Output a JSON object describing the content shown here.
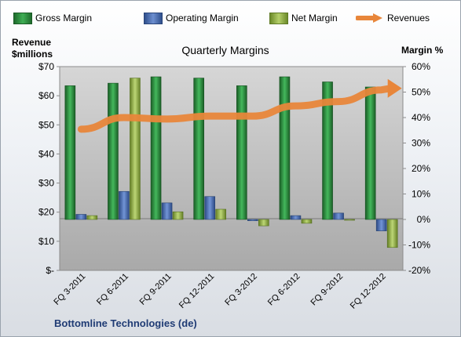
{
  "chart_data": {
    "type": "bar",
    "title": "Quarterly Margins",
    "subtitle": "Bottomline Technologies (de)",
    "left_axis_title": [
      "Revenue",
      "$millions"
    ],
    "right_axis_title": "Margin %",
    "left_ticks": [
      "$-",
      "$10",
      "$20",
      "$30",
      "$40",
      "$50",
      "$60",
      "$70"
    ],
    "right_ticks": [
      "-20%",
      "-10%",
      "0%",
      "10%",
      "20%",
      "30%",
      "40%",
      "50%",
      "60%"
    ],
    "ylim_left": [
      0,
      70
    ],
    "ylim_right": [
      -20,
      60
    ],
    "categories": [
      "FQ 3-2011",
      "FQ 6-2011",
      "FQ 9-2011",
      "FQ 12-2011",
      "FQ 3-2012",
      "FQ 6-2012",
      "FQ 9-2012",
      "FQ 12-2012"
    ],
    "series": [
      {
        "name": "Gross Margin",
        "axis": "right",
        "color": "#2e8b3e",
        "values": [
          52.5,
          53.5,
          56,
          55.5,
          52.5,
          56,
          54,
          52
        ]
      },
      {
        "name": "Operating Margin",
        "axis": "right",
        "color": "#4a6fb5",
        "values": [
          2,
          11,
          6.5,
          9,
          -0.5,
          1.5,
          2.5,
          -4.5
        ]
      },
      {
        "name": "Net Margin",
        "axis": "right",
        "color": "#8fae3f",
        "values": [
          1.5,
          55.5,
          3,
          4,
          -2.5,
          -1.5,
          0,
          -11
        ]
      },
      {
        "name": "Revenues",
        "axis": "left",
        "type": "line",
        "color": "#e8863a",
        "values": [
          48.5,
          52.5,
          52,
          53,
          53,
          56.5,
          58,
          62
        ]
      }
    ],
    "legend_position": "top",
    "grid": false
  }
}
